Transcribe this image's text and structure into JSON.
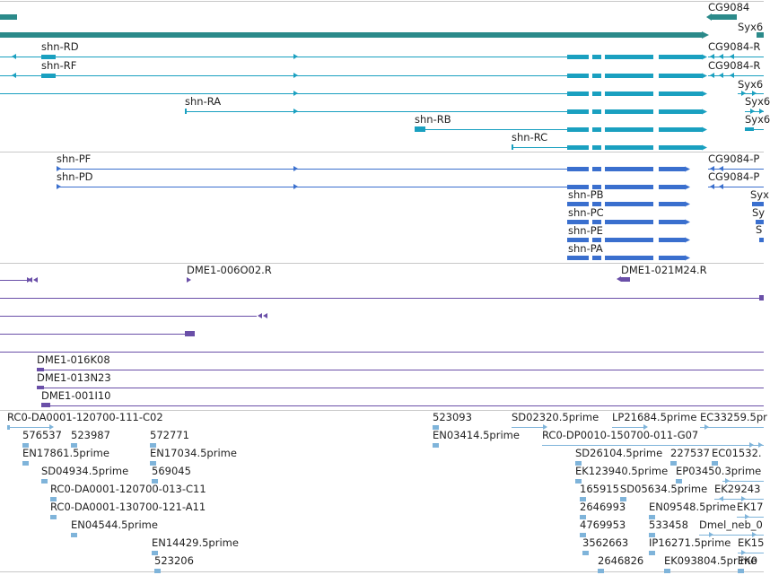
{
  "colors": {
    "gene": "#2b8a8a",
    "mrna": "#1aa0c0",
    "protein": "#3a6fce",
    "clone": "#6a4fa8",
    "est": "#7fb4da",
    "divider": "#c8c8c8",
    "text": "#222222"
  },
  "tracks": {
    "genes": {
      "labels": [
        "CG9084",
        "Syx6"
      ]
    },
    "transcripts": {
      "labels": [
        "shn-RD",
        "shn-RF",
        "CG9084-R",
        "CG9084-R",
        "Syx6",
        "shn-RA",
        "Syx6",
        "shn-RB",
        "Syx6",
        "shn-RC"
      ]
    },
    "proteins": {
      "labels": [
        "shn-PF",
        "CG9084-P",
        "shn-PD",
        "CG9084-P",
        "Syx",
        "shn-PB",
        "Sy",
        "shn-PC",
        "S",
        "shn-PE",
        "shn-PA"
      ]
    },
    "clones": {
      "labels": [
        "DME1-006O02.R",
        "DME1-021M24.R",
        "DME1-016K08",
        "DME1-013N23",
        "DME1-001I10"
      ]
    },
    "ests": {
      "labels": [
        "RC0-DA0001-120700-111-C02",
        "523093",
        "SD02320.5prime",
        "LP21684.5prime",
        "EC33259.5pr",
        "576537",
        "523987",
        "572771",
        "EN03414.5prime",
        "RC0-DP0010-150700-011-G07",
        "EN17861.5prime",
        "EN17034.5prime",
        "SD26104.5prime",
        "227537",
        "EC01532.",
        "SD04934.5prime",
        "569045",
        "EK123940.5prime",
        "EP03450.3prime",
        "RC0-DA0001-120700-013-C11",
        "165915",
        "SD05634.5prime",
        "EK29243",
        "RC0-DA0001-130700-121-A11",
        "2646993",
        "EN09548.5prime",
        "EK17",
        "EN04544.5prime",
        "4769953",
        "533458",
        "Dmel_neb_0",
        "EN14429.5prime",
        "3562663",
        "IP16271.5prime",
        "EK15",
        "523206",
        "2646826",
        "EK093804.5prime",
        "EK0"
      ]
    }
  }
}
